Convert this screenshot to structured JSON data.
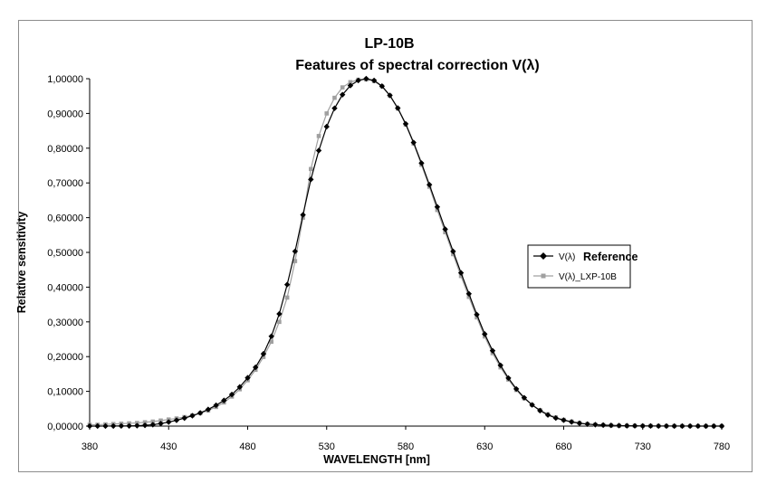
{
  "chart_data": {
    "type": "line",
    "title": "LP-10B",
    "subtitle": "Features of spectral correction V(λ)",
    "xlabel": "WAVELENGTH [nm]",
    "ylabel": "Relative sensitivity",
    "xlim": [
      380,
      780
    ],
    "ylim": [
      0,
      1
    ],
    "x_ticks": [
      "380",
      "430",
      "480",
      "530",
      "580",
      "630",
      "680",
      "730",
      "780"
    ],
    "y_ticks": [
      "0,00000",
      "0,10000",
      "0,20000",
      "0,30000",
      "0,40000",
      "0,50000",
      "0,60000",
      "0,70000",
      "0,80000",
      "0,90000",
      "1,00000"
    ],
    "grid": false,
    "legend_position": "right",
    "colors": {
      "series1": "#000000",
      "series2": "#a0a0a0"
    },
    "x": [
      380,
      385,
      390,
      395,
      400,
      405,
      410,
      415,
      420,
      425,
      430,
      435,
      440,
      445,
      450,
      455,
      460,
      465,
      470,
      475,
      480,
      485,
      490,
      495,
      500,
      505,
      510,
      515,
      520,
      525,
      530,
      535,
      540,
      545,
      550,
      555,
      560,
      565,
      570,
      575,
      580,
      585,
      590,
      595,
      600,
      605,
      610,
      615,
      620,
      625,
      630,
      635,
      640,
      645,
      650,
      655,
      660,
      665,
      670,
      675,
      680,
      685,
      690,
      695,
      700,
      705,
      710,
      715,
      720,
      725,
      730,
      735,
      740,
      745,
      750,
      755,
      760,
      765,
      770,
      775,
      780
    ],
    "series": [
      {
        "name": "V(λ)",
        "name_suffix": "Reference",
        "marker": "diamond",
        "values": [
          4e-05,
          6e-05,
          0.00012,
          0.00022,
          0.0004,
          0.0006,
          0.0012,
          0.0022,
          0.004,
          0.0073,
          0.0116,
          0.0168,
          0.023,
          0.0298,
          0.038,
          0.048,
          0.06,
          0.0739,
          0.091,
          0.1126,
          0.139,
          0.1693,
          0.208,
          0.2586,
          0.323,
          0.4073,
          0.503,
          0.6082,
          0.71,
          0.7932,
          0.862,
          0.9149,
          0.954,
          0.9803,
          0.995,
          1.0,
          0.995,
          0.9786,
          0.952,
          0.9154,
          0.87,
          0.8163,
          0.757,
          0.6949,
          0.631,
          0.5668,
          0.503,
          0.4412,
          0.381,
          0.321,
          0.265,
          0.217,
          0.175,
          0.1382,
          0.107,
          0.0816,
          0.061,
          0.0446,
          0.032,
          0.0232,
          0.017,
          0.0119,
          0.0082,
          0.0057,
          0.0041,
          0.0029,
          0.0021,
          0.0015,
          0.001,
          0.0007,
          0.0005,
          0.0004,
          0.0002,
          0.0002,
          0.0001,
          0.0001,
          0.0001,
          4e-05,
          3e-05,
          2e-05,
          1e-05
        ]
      },
      {
        "name": "V(λ)_LXP-10B",
        "marker": "square",
        "values": [
          0.004,
          0.004,
          0.005,
          0.006,
          0.007,
          0.008,
          0.009,
          0.011,
          0.013,
          0.016,
          0.019,
          0.022,
          0.026,
          0.031,
          0.037,
          0.045,
          0.055,
          0.068,
          0.085,
          0.106,
          0.132,
          0.162,
          0.199,
          0.243,
          0.3,
          0.37,
          0.475,
          0.6,
          0.74,
          0.835,
          0.9,
          0.945,
          0.975,
          0.99,
          0.997,
          0.998,
          0.993,
          0.978,
          0.951,
          0.914,
          0.868,
          0.813,
          0.752,
          0.689,
          0.622,
          0.558,
          0.495,
          0.432,
          0.372,
          0.313,
          0.258,
          0.21,
          0.169,
          0.134,
          0.104,
          0.08,
          0.061,
          0.046,
          0.034,
          0.025,
          0.018,
          0.013,
          0.009,
          0.006,
          0.004,
          0.003,
          0.002,
          0.001,
          0.001,
          0.001,
          0.0005,
          0.0005,
          0.0005,
          0.0003,
          0.0003,
          0.0002,
          0.0002,
          0.0001,
          0.0001,
          0.0001,
          0.0001
        ]
      }
    ]
  }
}
